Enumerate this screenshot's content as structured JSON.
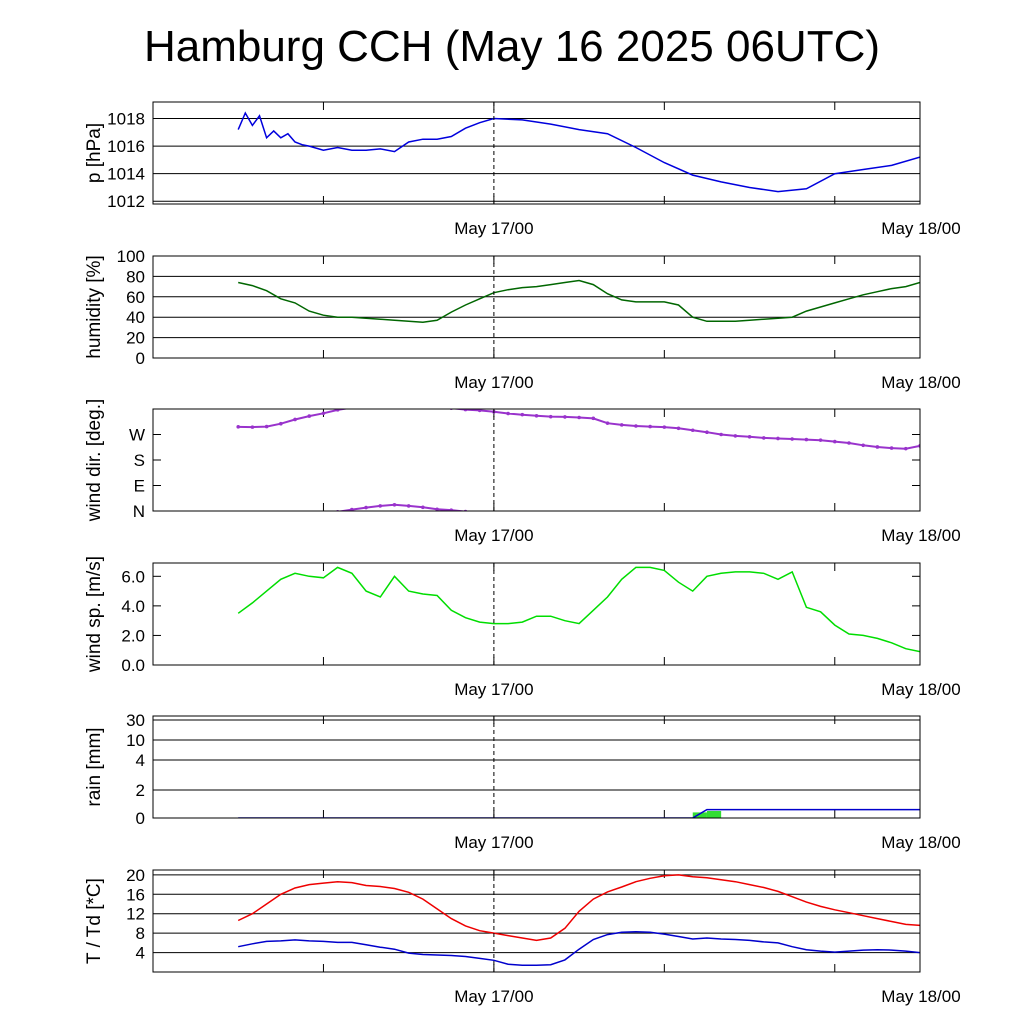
{
  "title": "Hamburg CCH (May 16 2025 06UTC)",
  "chart_data": [
    {
      "type": "line",
      "ylabel": "p [hPa]",
      "x_tick_labels": [
        "May 17/00",
        "May 18/00"
      ],
      "ylim": [
        1011.8,
        1019.2
      ],
      "yticks": [
        1012,
        1014,
        1016,
        1018
      ],
      "ytick_labels": [
        "1012",
        "1014",
        "1016",
        "1018"
      ],
      "grid": "horizontal",
      "series": [
        {
          "color": "#0000dd",
          "x_hours": [
            0,
            0.5,
            1,
            1.5,
            2,
            2.5,
            3,
            3.5,
            4,
            4.5,
            5,
            6,
            7,
            8,
            9,
            10,
            11,
            12,
            13,
            14,
            15,
            16,
            17,
            18,
            20,
            22,
            24,
            26,
            28,
            30,
            32,
            34,
            36,
            38,
            40,
            42,
            44,
            46,
            48
          ],
          "values": [
            1017.2,
            1018.4,
            1017.5,
            1018.2,
            1016.6,
            1017.1,
            1016.6,
            1016.9,
            1016.3,
            1016.1,
            1016.0,
            1015.7,
            1015.9,
            1015.7,
            1015.7,
            1015.8,
            1015.6,
            1016.3,
            1016.5,
            1016.5,
            1016.7,
            1017.3,
            1017.7,
            1018.0,
            1017.9,
            1017.6,
            1017.2,
            1016.9,
            1015.9,
            1014.8,
            1013.9,
            1013.4,
            1013.0,
            1012.7,
            1012.9,
            1014.0,
            1014.3,
            1014.6,
            1015.2
          ]
        }
      ]
    },
    {
      "type": "line",
      "ylabel": "humidity [%]",
      "x_tick_labels": [
        "May 17/00",
        "May 18/00"
      ],
      "ylim": [
        0,
        100
      ],
      "yticks": [
        0,
        20,
        40,
        60,
        80,
        100
      ],
      "ytick_labels": [
        "0",
        "20",
        "40",
        "60",
        "80",
        "100"
      ],
      "grid": "horizontal",
      "series": [
        {
          "color": "#006600",
          "x_hours": [
            0,
            1,
            2,
            3,
            4,
            5,
            6,
            7,
            8,
            9,
            10,
            11,
            12,
            13,
            14,
            15,
            16,
            17,
            18,
            19,
            20,
            21,
            22,
            23,
            24,
            25,
            26,
            27,
            28,
            29,
            30,
            31,
            32,
            33,
            34,
            35,
            36,
            37,
            38,
            39,
            40,
            41,
            42,
            43,
            44,
            45,
            46,
            47,
            48
          ],
          "values": [
            74,
            71,
            66,
            58,
            54,
            46,
            42,
            40,
            40,
            39,
            38,
            37,
            36,
            35,
            37,
            45,
            52,
            58,
            64,
            67,
            69,
            70,
            72,
            74,
            76,
            72,
            63,
            57,
            55,
            55,
            55,
            52,
            40,
            36,
            36,
            36,
            37,
            38,
            39,
            40,
            46,
            50,
            54,
            58,
            62,
            65,
            68,
            70,
            74
          ]
        }
      ]
    },
    {
      "type": "scatter",
      "ylabel": "wind dir. [deg.]",
      "x_tick_labels": [
        "May 17/00",
        "May 18/00"
      ],
      "ylim": [
        0,
        360
      ],
      "yticks": [
        0,
        90,
        180,
        270
      ],
      "ytick_labels": [
        "N",
        "E",
        "S",
        "W"
      ],
      "grid": "none",
      "series": [
        {
          "color": "#9933cc",
          "x_hours": [
            0,
            1,
            2,
            3,
            4,
            5,
            6,
            7,
            8,
            9,
            10,
            11,
            12,
            13,
            14,
            15,
            16,
            17,
            18,
            19,
            20,
            21,
            22,
            23,
            24,
            25,
            26,
            27,
            28,
            29,
            30,
            31,
            32,
            33,
            34,
            35,
            36,
            37,
            38,
            39,
            40,
            41,
            42,
            43,
            44,
            45,
            46,
            47,
            48
          ],
          "values": [
            297,
            296,
            298,
            308,
            323,
            335,
            345,
            357,
            365,
            372,
            378,
            382,
            378,
            373,
            366,
            363,
            358,
            355,
            350,
            344,
            340,
            336,
            333,
            332,
            330,
            327,
            310,
            304,
            300,
            298,
            296,
            292,
            285,
            278,
            270,
            265,
            262,
            258,
            256,
            254,
            252,
            250,
            245,
            240,
            232,
            226,
            222,
            220,
            230
          ]
        }
      ]
    },
    {
      "type": "line",
      "ylabel": "wind sp. [m/s]",
      "x_tick_labels": [
        "May 17/00",
        "May 18/00"
      ],
      "ylim": [
        0,
        6.9
      ],
      "yticks": [
        0,
        2,
        4,
        6
      ],
      "ytick_labels": [
        "0.0",
        "2.0",
        "4.0",
        "6.0"
      ],
      "grid": "none",
      "series": [
        {
          "color": "#00dd00",
          "x_hours": [
            0,
            1,
            2,
            3,
            4,
            5,
            6,
            7,
            8,
            9,
            10,
            11,
            12,
            13,
            14,
            15,
            16,
            17,
            18,
            19,
            20,
            21,
            22,
            23,
            24,
            25,
            26,
            27,
            28,
            29,
            30,
            31,
            32,
            33,
            34,
            35,
            36,
            37,
            38,
            39,
            40,
            41,
            42,
            43,
            44,
            45,
            46,
            47,
            48
          ],
          "values": [
            3.5,
            4.2,
            5.0,
            5.8,
            6.2,
            6.0,
            5.9,
            6.6,
            6.2,
            5.0,
            4.6,
            6.0,
            5.0,
            4.8,
            4.7,
            3.7,
            3.2,
            2.9,
            2.8,
            2.8,
            2.9,
            3.3,
            3.3,
            3.0,
            2.8,
            3.7,
            4.6,
            5.8,
            6.6,
            6.6,
            6.4,
            5.6,
            5.0,
            6.0,
            6.2,
            6.3,
            6.3,
            6.2,
            5.8,
            6.3,
            3.9,
            3.6,
            2.7,
            2.1,
            2.0,
            1.8,
            1.5,
            1.1,
            0.9
          ]
        }
      ]
    },
    {
      "type": "bar",
      "ylabel": "rain [mm]",
      "x_tick_labels": [
        "May 17/00",
        "May 18/00"
      ],
      "yticks": [
        0,
        2,
        4,
        10,
        30
      ],
      "ytick_labels": [
        "0",
        "2",
        "4",
        "10",
        "30"
      ],
      "grid": "horizontal",
      "bars": {
        "color": "#33dd33",
        "x_hours": [
          32.5,
          33.5
        ],
        "values": [
          0.4,
          0.5
        ]
      },
      "series": [
        {
          "name": "",
          "color": "#0000cc",
          "x_hours": [
            0,
            32,
            33,
            48
          ],
          "values": [
            0,
            0,
            0.6,
            0.6
          ]
        }
      ]
    },
    {
      "type": "line",
      "ylabel": "T / Td [*C]",
      "x_tick_labels": [
        "May 17/00",
        "May 18/00"
      ],
      "ylim": [
        0,
        21
      ],
      "yticks": [
        4,
        8,
        12,
        16,
        20
      ],
      "ytick_labels": [
        "4",
        "8",
        "12",
        "16",
        "20"
      ],
      "grid": "horizontal",
      "series": [
        {
          "color": "#ee0000",
          "x_hours": [
            0,
            1,
            2,
            3,
            4,
            5,
            6,
            7,
            8,
            9,
            10,
            11,
            12,
            13,
            14,
            15,
            16,
            17,
            18,
            19,
            20,
            21,
            22,
            23,
            24,
            25,
            26,
            27,
            28,
            29,
            30,
            31,
            32,
            33,
            34,
            35,
            36,
            37,
            38,
            39,
            40,
            41,
            42,
            43,
            44,
            45,
            46,
            47,
            48
          ],
          "values": [
            10.6,
            12.0,
            14.0,
            16.0,
            17.3,
            18.0,
            18.3,
            18.6,
            18.4,
            17.8,
            17.6,
            17.2,
            16.4,
            15.0,
            13.0,
            11.0,
            9.5,
            8.5,
            8.0,
            7.5,
            7.0,
            6.5,
            7.0,
            9.0,
            12.5,
            15.0,
            16.5,
            17.5,
            18.6,
            19.3,
            19.8,
            20.0,
            19.6,
            19.4,
            19.0,
            18.6,
            18.0,
            17.4,
            16.6,
            15.5,
            14.4,
            13.5,
            12.8,
            12.2,
            11.6,
            11.0,
            10.4,
            9.8,
            9.6
          ]
        },
        {
          "color": "#0000cc",
          "x_hours": [
            0,
            1,
            2,
            3,
            4,
            5,
            6,
            7,
            8,
            9,
            10,
            11,
            12,
            13,
            14,
            15,
            16,
            17,
            18,
            19,
            20,
            21,
            22,
            23,
            24,
            25,
            26,
            27,
            28,
            29,
            30,
            31,
            32,
            33,
            34,
            35,
            36,
            37,
            38,
            39,
            40,
            41,
            42,
            43,
            44,
            45,
            46,
            47,
            48
          ],
          "values": [
            5.2,
            5.8,
            6.3,
            6.4,
            6.6,
            6.4,
            6.3,
            6.1,
            6.1,
            5.6,
            5.1,
            4.7,
            3.9,
            3.6,
            3.5,
            3.4,
            3.2,
            2.8,
            2.4,
            1.6,
            1.4,
            1.4,
            1.5,
            2.5,
            4.7,
            6.7,
            7.7,
            8.2,
            8.3,
            8.2,
            7.8,
            7.3,
            6.8,
            7.0,
            6.8,
            6.7,
            6.5,
            6.2,
            6.0,
            5.2,
            4.6,
            4.3,
            4.1,
            4.3,
            4.5,
            4.6,
            4.5,
            4.3,
            4.0
          ]
        }
      ]
    }
  ]
}
